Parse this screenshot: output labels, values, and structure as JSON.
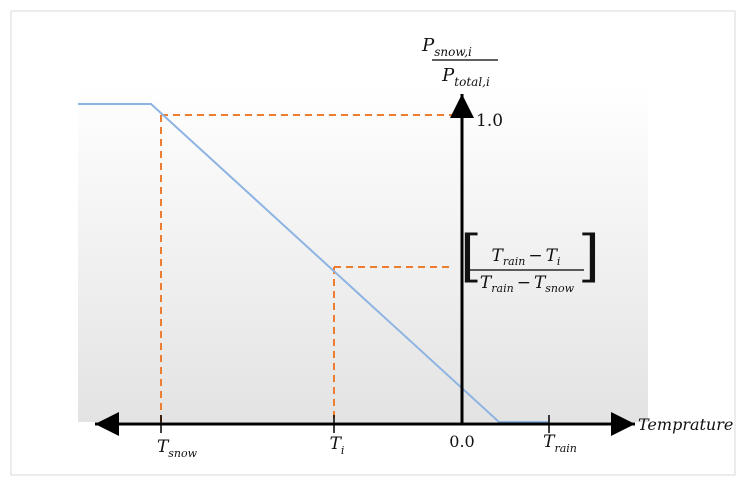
{
  "diagram": {
    "colors": {
      "axis": "#000000",
      "curve": "#8db4e2",
      "guide": "#ed7d31",
      "background_top": "#ffffff",
      "background_bottom": "#e3e3e3",
      "frame": "#d9d9d9"
    },
    "y_axis": {
      "label_numerator": {
        "base": "P",
        "subscript": "snow,i"
      },
      "label_denominator": {
        "base": "P",
        "subscript": "total,i"
      },
      "tick_top": "1.0"
    },
    "x_axis": {
      "label": "Temprature",
      "origin_label": "0.0",
      "t_snow": {
        "base": "T",
        "subscript": "snow"
      },
      "t_i": {
        "base": "T",
        "subscript": "i"
      },
      "t_rain": {
        "base": "T",
        "subscript": "rain"
      }
    },
    "formula": {
      "numerator_left": {
        "base": "T",
        "subscript": "rain"
      },
      "numerator_operator": "−",
      "numerator_right": {
        "base": "T",
        "subscript": "i"
      },
      "denominator_left": {
        "base": "T",
        "subscript": "rain"
      },
      "denominator_operator": "−",
      "denominator_right": {
        "base": "T",
        "subscript": "snow"
      }
    }
  }
}
